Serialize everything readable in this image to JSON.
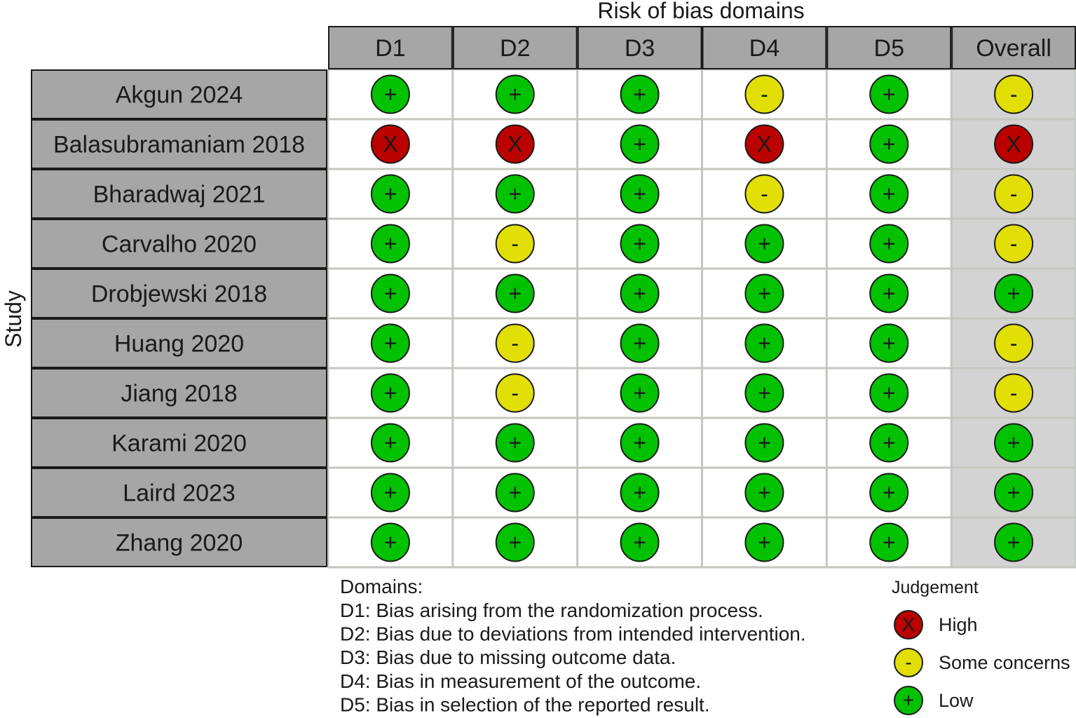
{
  "chart_data": {
    "type": "table",
    "title": "Risk of bias domains",
    "ylabel": "Study",
    "columns": [
      "D1",
      "D2",
      "D3",
      "D4",
      "D5",
      "Overall"
    ],
    "studies": [
      "Akgun 2024",
      "Balasubramaniam 2018",
      "Bharadwaj 2021",
      "Carvalho 2020",
      "Drobjewski 2018",
      "Huang 2020",
      "Jiang 2018",
      "Karami 2020",
      "Laird 2023",
      "Zhang 2020"
    ],
    "judgements": [
      [
        "low",
        "low",
        "low",
        "some",
        "low",
        "some"
      ],
      [
        "high",
        "high",
        "low",
        "high",
        "low",
        "high"
      ],
      [
        "low",
        "low",
        "low",
        "some",
        "low",
        "some"
      ],
      [
        "low",
        "some",
        "low",
        "low",
        "low",
        "some"
      ],
      [
        "low",
        "low",
        "low",
        "low",
        "low",
        "low"
      ],
      [
        "low",
        "some",
        "low",
        "low",
        "low",
        "some"
      ],
      [
        "low",
        "some",
        "low",
        "low",
        "low",
        "some"
      ],
      [
        "low",
        "low",
        "low",
        "low",
        "low",
        "low"
      ],
      [
        "low",
        "low",
        "low",
        "low",
        "low",
        "low"
      ],
      [
        "low",
        "low",
        "low",
        "low",
        "low",
        "low"
      ]
    ],
    "domains": {
      "heading": "Domains:",
      "lines": [
        "D1: Bias arising from the randomization process.",
        "D2: Bias due to deviations from intended intervention.",
        "D3: Bias due to missing outcome data.",
        "D4: Bias in measurement of the outcome.",
        "D5: Bias in selection of the reported result."
      ]
    },
    "legend": {
      "title": "Judgement",
      "items": [
        {
          "key": "high",
          "symbol": "X",
          "label": "High",
          "color": "#bb0000"
        },
        {
          "key": "some",
          "symbol": "-",
          "label": "Some concerns",
          "color": "#e2df07"
        },
        {
          "key": "low",
          "symbol": "+",
          "label": "Low",
          "color": "#02c100"
        }
      ]
    },
    "colors": {
      "header_fill": "#a6a6a6",
      "overall_column_fill": "#d3d3d3",
      "grid_line": "#c4c7c0"
    }
  }
}
